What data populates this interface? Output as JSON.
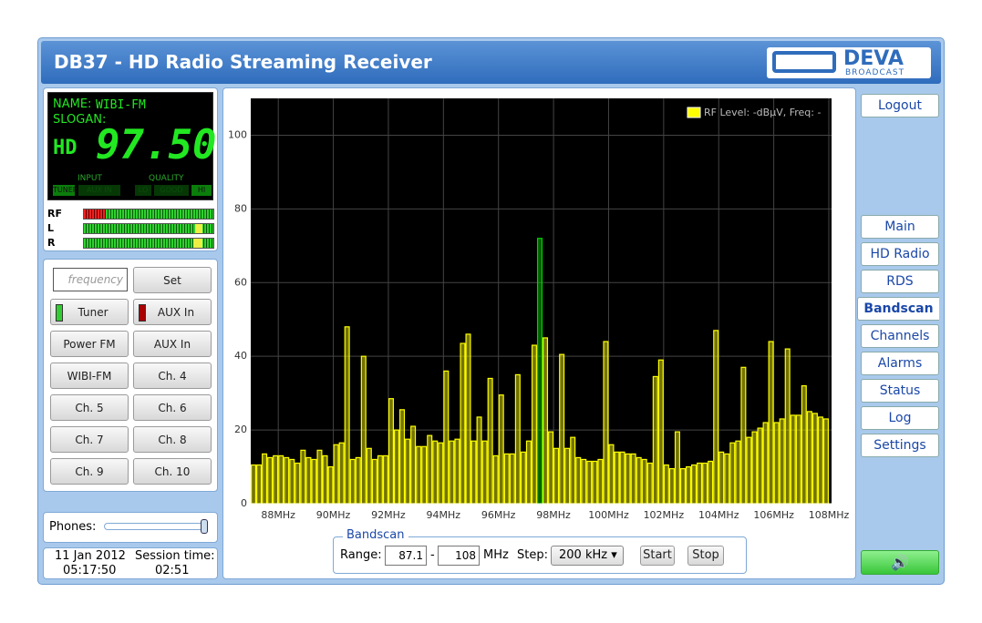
{
  "header": {
    "title": "DB37 - HD Radio Streaming Receiver",
    "logo": "DEVA",
    "logo_sub": "BROADCAST"
  },
  "display": {
    "name_label": "NAME:",
    "name": "WIBI-FM",
    "slogan_label": "SLOGAN:",
    "frequency": "97.50",
    "input_label": "INPUT",
    "quality_label": "QUALITY",
    "input_options": [
      "TUNER",
      "AUX IN"
    ],
    "quality_options": [
      "LO",
      "GOOD",
      "HI"
    ]
  },
  "meters": [
    "RF",
    "L",
    "R"
  ],
  "controls": {
    "frequency_placeholder": "frequency",
    "set": "Set",
    "buttons": [
      "Tuner",
      "AUX In",
      "Power FM",
      "AUX In",
      "WIBI-FM",
      "Ch. 4",
      "Ch. 5",
      "Ch. 6",
      "Ch. 7",
      "Ch. 8",
      "Ch. 9",
      "Ch. 10"
    ]
  },
  "phones": "Phones:",
  "status": {
    "date": "11 Jan 2012",
    "time": "05:17:50",
    "session_label": "Session time:",
    "session": "02:51"
  },
  "nav": {
    "logout": "Logout",
    "items": [
      "Main",
      "HD Radio",
      "RDS",
      "Bandscan",
      "Channels",
      "Alarms",
      "Status",
      "Log",
      "Settings"
    ],
    "active": 3
  },
  "bandscan": {
    "legend": "Bandscan",
    "range_label": "Range:",
    "range_from": "87.1",
    "separator": "-",
    "range_to": "108",
    "unit": "MHz",
    "step_label": "Step:",
    "step": "200 kHz",
    "start": "Start",
    "stop": "Stop"
  },
  "chart_data": {
    "type": "bar",
    "grid": true,
    "legend": "top-right",
    "x": [
      87.1,
      87.3,
      87.5,
      87.7,
      87.9,
      88.1,
      88.3,
      88.5,
      88.7,
      88.9,
      89.1,
      89.3,
      89.5,
      89.7,
      89.9,
      90.1,
      90.3,
      90.5,
      90.7,
      90.9,
      91.1,
      91.3,
      91.5,
      91.7,
      91.9,
      92.1,
      92.3,
      92.5,
      92.7,
      92.9,
      93.1,
      93.3,
      93.5,
      93.7,
      93.9,
      94.1,
      94.3,
      94.5,
      94.7,
      94.9,
      95.1,
      95.3,
      95.5,
      95.7,
      95.9,
      96.1,
      96.3,
      96.5,
      96.7,
      96.9,
      97.1,
      97.3,
      97.5,
      97.7,
      97.9,
      98.1,
      98.3,
      98.5,
      98.7,
      98.9,
      99.1,
      99.3,
      99.5,
      99.7,
      99.9,
      100.1,
      100.3,
      100.5,
      100.7,
      100.9,
      101.1,
      101.3,
      101.5,
      101.7,
      101.9,
      102.1,
      102.3,
      102.5,
      102.7,
      102.9,
      103.1,
      103.3,
      103.5,
      103.7,
      103.9,
      104.1,
      104.3,
      104.5,
      104.7,
      104.9,
      105.1,
      105.3,
      105.5,
      105.7,
      105.9,
      106.1,
      106.3,
      106.5,
      106.7,
      106.9,
      107.1,
      107.3,
      107.5,
      107.7,
      107.9
    ],
    "series": [
      {
        "name": "RF Level: -dBµV, Freq: -",
        "color": "#ffff00",
        "highlight_index": 52,
        "highlight_color": "#00d000",
        "values": [
          10.5,
          10.5,
          13.5,
          12.5,
          13,
          13,
          12.5,
          12,
          11,
          14.5,
          12.5,
          12,
          14.5,
          13,
          10,
          16,
          16.5,
          48,
          12,
          12.5,
          40,
          15,
          12,
          13,
          13,
          28.5,
          20,
          25.5,
          17.5,
          21,
          15.5,
          15.5,
          18.5,
          17,
          16.5,
          36,
          17,
          17.5,
          43.5,
          46,
          17,
          23.5,
          17,
          34,
          13,
          29.5,
          13.5,
          13.5,
          35,
          14,
          17,
          43,
          72,
          45,
          19.5,
          15,
          40.5,
          15,
          18,
          12.5,
          12,
          11.5,
          11.5,
          12,
          44,
          16,
          14,
          14,
          13.5,
          13.5,
          12.5,
          12,
          11,
          34.5,
          39,
          10.5,
          9.5,
          19.5,
          9.5,
          10,
          10.5,
          11,
          11,
          11.5,
          47,
          14,
          13.5,
          16.5,
          17,
          37,
          18,
          19.5,
          20.5,
          22,
          44,
          22,
          23,
          42,
          24,
          24,
          32,
          25,
          24.5,
          23.5,
          23
        ]
      }
    ],
    "xlim": [
      87,
      108.1
    ],
    "ylim": [
      0,
      110
    ],
    "xticks": [
      {
        "value": 88,
        "label": "88MHz"
      },
      {
        "value": 90,
        "label": "90MHz"
      },
      {
        "value": 92,
        "label": "92MHz"
      },
      {
        "value": 94,
        "label": "94MHz"
      },
      {
        "value": 96,
        "label": "96MHz"
      },
      {
        "value": 98,
        "label": "98MHz"
      },
      {
        "value": 100,
        "label": "100MHz"
      },
      {
        "value": 102,
        "label": "102MHz"
      },
      {
        "value": 104,
        "label": "104MHz"
      },
      {
        "value": 106,
        "label": "106MHz"
      },
      {
        "value": 108,
        "label": "108MHz"
      }
    ],
    "yticks": [
      0,
      20,
      40,
      60,
      80,
      100
    ]
  }
}
